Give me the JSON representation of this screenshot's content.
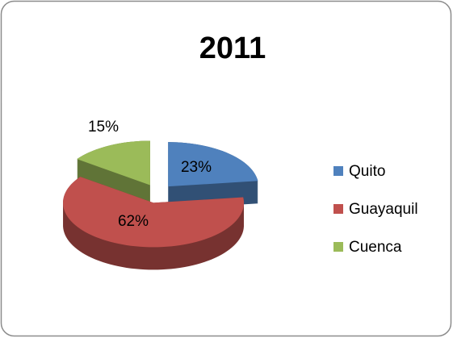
{
  "chart_data": {
    "type": "pie",
    "title": "2011",
    "categories": [
      "Quito",
      "Guayaquil",
      "Cuenca"
    ],
    "values": [
      23,
      62,
      15
    ],
    "value_labels": [
      "23%",
      "62%",
      "15%"
    ],
    "colors": [
      "#4f81bd",
      "#c0504d",
      "#9bbb59"
    ],
    "legend": "right"
  }
}
